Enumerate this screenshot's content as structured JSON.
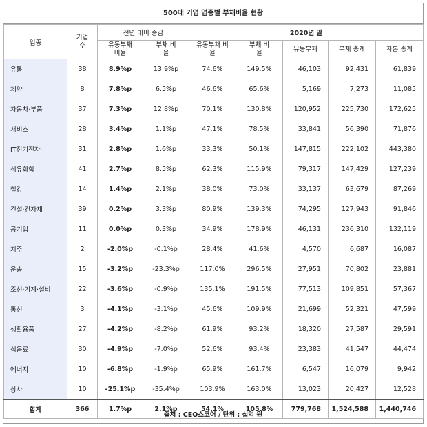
{
  "title": "500대 기업 업종별 부채비율 현황",
  "headers": {
    "industry": "업종",
    "companies": "기업 수",
    "yoy_group": "전년 대비 증감",
    "y2020_group": "2020년 말",
    "yoy_current_liab": "유동부채 비율",
    "yoy_debt": "부채 비율",
    "cur_current_liab": "유동부채 비율",
    "cur_debt": "부채 비율",
    "current_liab": "유동부채",
    "total_liab": "부채 총계",
    "total_equity": "자본 총계"
  },
  "rows": [
    {
      "industry": "유통",
      "count": "38",
      "yoy_cl": "8.9%p",
      "yoy_debt": "13.9%p",
      "cl_ratio": "74.6%",
      "debt_ratio": "149.5%",
      "cl": "46,103",
      "liab": "92,431",
      "equity": "61,839"
    },
    {
      "industry": "제약",
      "count": "8",
      "yoy_cl": "7.8%p",
      "yoy_debt": "6.5%p",
      "cl_ratio": "46.6%",
      "debt_ratio": "65.6%",
      "cl": "5,169",
      "liab": "7,273",
      "equity": "11,085"
    },
    {
      "industry": "자동차·부품",
      "count": "37",
      "yoy_cl": "7.3%p",
      "yoy_debt": "12.8%p",
      "cl_ratio": "70.1%",
      "debt_ratio": "130.8%",
      "cl": "120,952",
      "liab": "225,730",
      "equity": "172,625"
    },
    {
      "industry": "서비스",
      "count": "28",
      "yoy_cl": "3.4%p",
      "yoy_debt": "1.1%p",
      "cl_ratio": "47.1%",
      "debt_ratio": "78.5%",
      "cl": "33,841",
      "liab": "56,390",
      "equity": "71,876"
    },
    {
      "industry": "IT전기전자",
      "count": "31",
      "yoy_cl": "2.8%p",
      "yoy_debt": "1.6%p",
      "cl_ratio": "33.3%",
      "debt_ratio": "50.1%",
      "cl": "147,815",
      "liab": "222,102",
      "equity": "443,380"
    },
    {
      "industry": "석유화학",
      "count": "41",
      "yoy_cl": "2.7%p",
      "yoy_debt": "8.5%p",
      "cl_ratio": "62.3%",
      "debt_ratio": "115.9%",
      "cl": "79,317",
      "liab": "147,429",
      "equity": "127,239"
    },
    {
      "industry": "철강",
      "count": "14",
      "yoy_cl": "1.4%p",
      "yoy_debt": "2.1%p",
      "cl_ratio": "38.0%",
      "debt_ratio": "73.0%",
      "cl": "33,137",
      "liab": "63,679",
      "equity": "87,269"
    },
    {
      "industry": "건설·건자재",
      "count": "39",
      "yoy_cl": "0.2%p",
      "yoy_debt": "3.3%p",
      "cl_ratio": "80.9%",
      "debt_ratio": "139.3%",
      "cl": "74,295",
      "liab": "127,943",
      "equity": "91,846"
    },
    {
      "industry": "공기업",
      "count": "11",
      "yoy_cl": "0.0%p",
      "yoy_debt": "0.3%p",
      "cl_ratio": "34.9%",
      "debt_ratio": "178.9%",
      "cl": "46,131",
      "liab": "236,310",
      "equity": "132,119"
    },
    {
      "industry": "지주",
      "count": "2",
      "yoy_cl": "-2.0%p",
      "yoy_debt": "-0.1%p",
      "cl_ratio": "28.4%",
      "debt_ratio": "41.6%",
      "cl": "4,570",
      "liab": "6,687",
      "equity": "16,087"
    },
    {
      "industry": "운송",
      "count": "15",
      "yoy_cl": "-3.2%p",
      "yoy_debt": "-23.3%p",
      "cl_ratio": "117.0%",
      "debt_ratio": "296.5%",
      "cl": "27,951",
      "liab": "70,802",
      "equity": "23,881"
    },
    {
      "industry": "조선·기계·설비",
      "count": "22",
      "yoy_cl": "-3.6%p",
      "yoy_debt": "-0.9%p",
      "cl_ratio": "135.1%",
      "debt_ratio": "191.5%",
      "cl": "77,513",
      "liab": "109,851",
      "equity": "57,367"
    },
    {
      "industry": "통신",
      "count": "3",
      "yoy_cl": "-4.1%p",
      "yoy_debt": "-3.1%p",
      "cl_ratio": "45.6%",
      "debt_ratio": "109.9%",
      "cl": "21,699",
      "liab": "52,321",
      "equity": "47,599"
    },
    {
      "industry": "생활용품",
      "count": "27",
      "yoy_cl": "-4.2%p",
      "yoy_debt": "-8.2%p",
      "cl_ratio": "61.9%",
      "debt_ratio": "93.2%",
      "cl": "18,320",
      "liab": "27,587",
      "equity": "29,591"
    },
    {
      "industry": "식음료",
      "count": "30",
      "yoy_cl": "-4.9%p",
      "yoy_debt": "-7.0%p",
      "cl_ratio": "52.6%",
      "debt_ratio": "93.4%",
      "cl": "23,383",
      "liab": "41,547",
      "equity": "44,474"
    },
    {
      "industry": "에너지",
      "count": "10",
      "yoy_cl": "-6.8%p",
      "yoy_debt": "-1.9%p",
      "cl_ratio": "65.9%",
      "debt_ratio": "161.7%",
      "cl": "6,547",
      "liab": "16,079",
      "equity": "9,942"
    },
    {
      "industry": "상사",
      "count": "10",
      "yoy_cl": "-25.1%p",
      "yoy_debt": "-35.4%p",
      "cl_ratio": "103.9%",
      "debt_ratio": "163.0%",
      "cl": "13,023",
      "liab": "20,427",
      "equity": "12,528"
    }
  ],
  "total": {
    "industry": "합계",
    "count": "366",
    "yoy_cl": "1.7%p",
    "yoy_debt": "2.1%p",
    "cl_ratio": "54.1%",
    "debt_ratio": "105.8%",
    "cl": "779,768",
    "liab": "1,524,588",
    "equity": "1,440,746"
  },
  "source": "출처 : CEO스코어 / 단위 : 십억 원",
  "colors": {
    "industry_cell_bg": "#e9eefa",
    "border": "#b5b5b5"
  }
}
